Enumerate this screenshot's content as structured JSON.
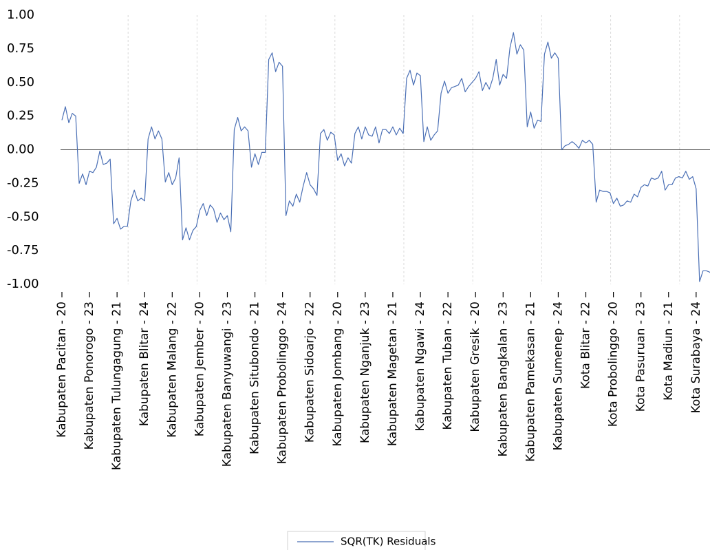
{
  "chart_data": {
    "type": "line",
    "categories": [
      "Kabupaten Pacitan - 20",
      null,
      null,
      null,
      null,
      null,
      null,
      null,
      "Kabupaten Ponorogo - 23",
      null,
      null,
      null,
      null,
      null,
      null,
      null,
      "Kabupaten Tulungagung - 21",
      null,
      null,
      null,
      null,
      null,
      null,
      null,
      "Kabupaten Blitar - 24",
      null,
      null,
      null,
      null,
      null,
      null,
      null,
      "Kabupaten Malang - 22",
      null,
      null,
      null,
      null,
      null,
      null,
      null,
      "Kabupaten Jember - 20",
      null,
      null,
      null,
      null,
      null,
      null,
      null,
      "Kabupaten Banyuwangi - 23",
      null,
      null,
      null,
      null,
      null,
      null,
      null,
      "Kabupaten Situbondo - 21",
      null,
      null,
      null,
      null,
      null,
      null,
      null,
      "Kabupaten Probolinggo - 24",
      null,
      null,
      null,
      null,
      null,
      null,
      null,
      "Kabupaten Sidoarjo - 22",
      null,
      null,
      null,
      null,
      null,
      null,
      null,
      "Kabupaten Jombang - 20",
      null,
      null,
      null,
      null,
      null,
      null,
      null,
      "Kabupaten Nganjuk - 23",
      null,
      null,
      null,
      null,
      null,
      null,
      null,
      "Kabupaten Magetan - 21",
      null,
      null,
      null,
      null,
      null,
      null,
      null,
      "Kabupaten Ngawi - 24",
      null,
      null,
      null,
      null,
      null,
      null,
      null,
      "Kabupaten Tuban - 22",
      null,
      null,
      null,
      null,
      null,
      null,
      null,
      "Kabupaten Gresik - 20",
      null,
      null,
      null,
      null,
      null,
      null,
      null,
      "Kabupaten Bangkalan - 23",
      null,
      null,
      null,
      null,
      null,
      null,
      null,
      "Kabupaten Pamekasan - 21",
      null,
      null,
      null,
      null,
      null,
      null,
      null,
      "Kabupaten Sumenep - 24",
      null,
      null,
      null,
      null,
      null,
      null,
      null,
      "Kota Blitar - 22",
      null,
      null,
      null,
      null,
      null,
      null,
      null,
      "Kota Probolinggo - 20",
      null,
      null,
      null,
      null,
      null,
      null,
      null,
      "Kota Pasuruan - 23",
      null,
      null,
      null,
      null,
      null,
      null,
      null,
      "Kota Madiun - 21",
      null,
      null,
      null,
      null,
      null,
      null,
      null,
      "Kota Surabaya - 24",
      null,
      null,
      null,
      null,
      null
    ],
    "series": [
      {
        "name": "SQR(TK) Residuals",
        "color": "#4a6fb5",
        "values": [
          0.22,
          0.32,
          0.2,
          0.27,
          0.25,
          -0.25,
          -0.18,
          -0.26,
          -0.16,
          -0.17,
          -0.13,
          -0.01,
          -0.11,
          -0.1,
          -0.07,
          -0.55,
          -0.51,
          -0.59,
          -0.57,
          -0.57,
          -0.38,
          -0.3,
          -0.38,
          -0.36,
          -0.38,
          0.08,
          0.17,
          0.08,
          0.14,
          0.08,
          -0.24,
          -0.17,
          -0.26,
          -0.21,
          -0.06,
          -0.67,
          -0.58,
          -0.67,
          -0.6,
          -0.57,
          -0.45,
          -0.4,
          -0.49,
          -0.41,
          -0.44,
          -0.54,
          -0.47,
          -0.52,
          -0.49,
          -0.61,
          0.15,
          0.24,
          0.14,
          0.17,
          0.14,
          -0.13,
          -0.03,
          -0.11,
          -0.02,
          -0.02,
          0.67,
          0.72,
          0.58,
          0.65,
          0.62,
          -0.49,
          -0.38,
          -0.42,
          -0.33,
          -0.39,
          -0.27,
          -0.17,
          -0.26,
          -0.29,
          -0.34,
          0.12,
          0.15,
          0.07,
          0.13,
          0.11,
          -0.08,
          -0.03,
          -0.12,
          -0.06,
          -0.1,
          0.12,
          0.17,
          0.08,
          0.17,
          0.11,
          0.1,
          0.17,
          0.05,
          0.15,
          0.15,
          0.12,
          0.17,
          0.11,
          0.16,
          0.12,
          0.53,
          0.59,
          0.48,
          0.57,
          0.55,
          0.06,
          0.17,
          0.07,
          0.11,
          0.14,
          0.42,
          0.51,
          0.42,
          0.46,
          0.47,
          0.48,
          0.53,
          0.43,
          0.47,
          0.5,
          0.53,
          0.58,
          0.44,
          0.5,
          0.45,
          0.53,
          0.67,
          0.48,
          0.56,
          0.53,
          0.76,
          0.87,
          0.71,
          0.78,
          0.74,
          0.17,
          0.28,
          0.16,
          0.22,
          0.21,
          0.71,
          0.8,
          0.68,
          0.72,
          0.68,
          0.0,
          0.03,
          0.04,
          0.06,
          0.04,
          0.01,
          0.07,
          0.05,
          0.07,
          0.04,
          -0.39,
          -0.3,
          -0.31,
          -0.31,
          -0.32,
          -0.4,
          -0.36,
          -0.42,
          -0.41,
          -0.38,
          -0.39,
          -0.33,
          -0.35,
          -0.28,
          -0.26,
          -0.27,
          -0.21,
          -0.22,
          -0.21,
          -0.16,
          -0.3,
          -0.26,
          -0.26,
          -0.21,
          -0.2,
          -0.21,
          -0.16,
          -0.22,
          -0.2,
          -0.29,
          -0.98,
          -0.9,
          -0.9,
          -0.91,
          -0.96
        ]
      }
    ],
    "ylim": [
      -1,
      1
    ],
    "yticks": [
      {
        "value": 1,
        "label": "1.00"
      },
      {
        "value": 0.75,
        "label": "0.75"
      },
      {
        "value": 0.5,
        "label": "0.50"
      },
      {
        "value": 0.25,
        "label": "0.25"
      },
      {
        "value": 0,
        "label": "0.00"
      },
      {
        "value": -0.25,
        "label": "-0.25"
      },
      {
        "value": -0.5,
        "label": "-0.50"
      },
      {
        "value": -0.75,
        "label": "-0.75"
      },
      {
        "value": -1,
        "label": "-1.00"
      }
    ],
    "grid": true,
    "legend": "bottom"
  }
}
